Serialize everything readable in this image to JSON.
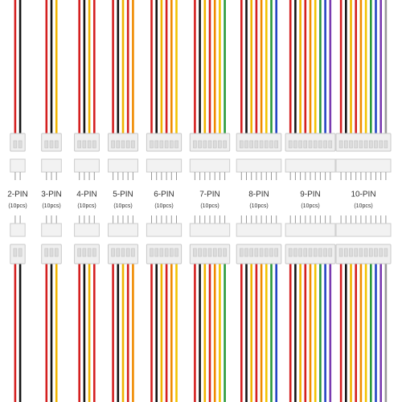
{
  "items": [
    {
      "label": "2-PIN",
      "qty": "(10pcs)"
    },
    {
      "label": "3-PIN",
      "qty": "(10pcs)"
    },
    {
      "label": "4-PIN",
      "qty": "(10pcs)"
    },
    {
      "label": "5-PIN",
      "qty": "(10pcs)"
    },
    {
      "label": "6-PIN",
      "qty": "(10pcs)"
    },
    {
      "label": "7-PIN",
      "qty": "(10pcs)"
    },
    {
      "label": "8-PIN",
      "qty": "(10pcs)"
    },
    {
      "label": "9-PIN",
      "qty": "(10pcs)"
    },
    {
      "label": "10-PIN",
      "qty": "(10pcs)"
    }
  ]
}
